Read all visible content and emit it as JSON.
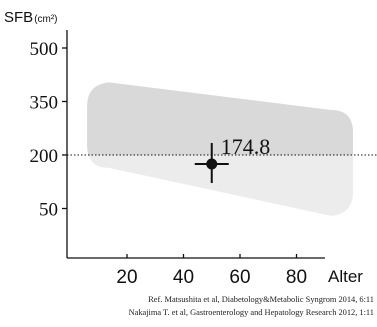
{
  "chart_data": {
    "type": "scatter",
    "ylabel": "SFB",
    "ylabel_unit": "(cm²)",
    "xlabel": "Alter",
    "x_ticks": [
      20,
      40,
      60,
      80
    ],
    "y_ticks": [
      50,
      200,
      350,
      500
    ],
    "xlim": [
      3,
      105
    ],
    "ylim": [
      -70,
      555
    ],
    "reference_line": {
      "y": 200,
      "style": "dotted"
    },
    "normal_range_band": {
      "upper": [
        {
          "x": 8,
          "y": 398
        },
        {
          "x": 100,
          "y": 315
        }
      ],
      "lower": [
        {
          "x": 8,
          "y": 175
        },
        {
          "x": 100,
          "y": 35
        }
      ],
      "color_above_line": "#d9d9d9",
      "color_below_line": "#ececec"
    },
    "point": {
      "x": 50,
      "y": 174.8,
      "label": "174.8"
    },
    "references": [
      "Ref. Matsushita et al, Diabetology&Metabolic Syngrom 2014, 6:11",
      "Nakajima T. et al, Gastroenterology and Hepatology Research 2012, 1:11"
    ]
  }
}
